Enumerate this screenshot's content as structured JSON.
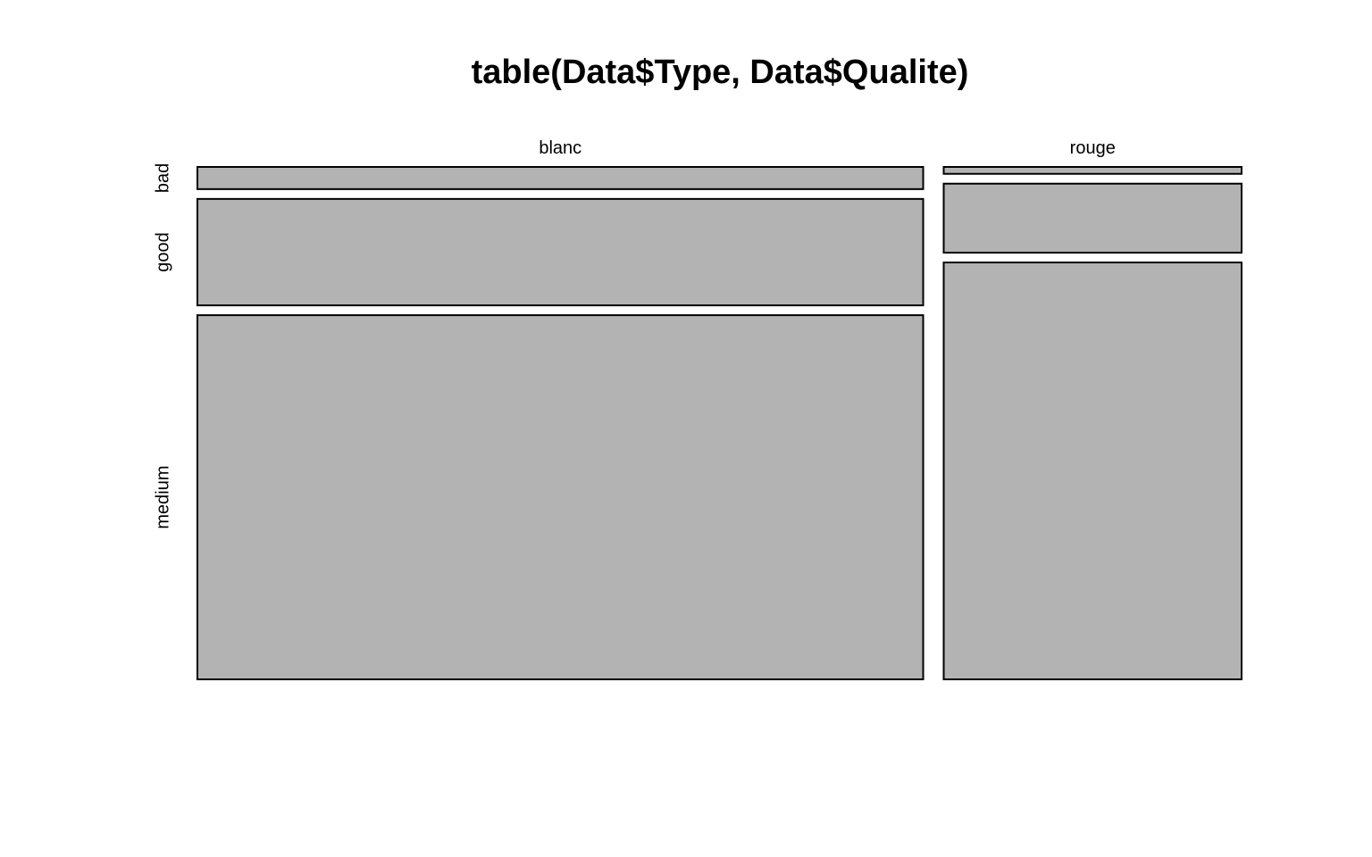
{
  "chart_data": {
    "type": "mosaic",
    "title": "table(Data$Type, Data$Qualite)",
    "xlabel": "",
    "ylabel": "",
    "categories": [
      "blanc",
      "rouge"
    ],
    "series": [
      {
        "name": "bad",
        "values": [
          0.045,
          0.014
        ]
      },
      {
        "name": "good",
        "values": [
          0.216,
          0.14
        ]
      },
      {
        "name": "medium",
        "values": [
          0.739,
          0.846
        ]
      }
    ],
    "column_proportions": [
      0.709,
      0.291
    ],
    "tile_color": "#b3b3b3",
    "border_color": "#000000",
    "grid": false,
    "legend": "none"
  }
}
